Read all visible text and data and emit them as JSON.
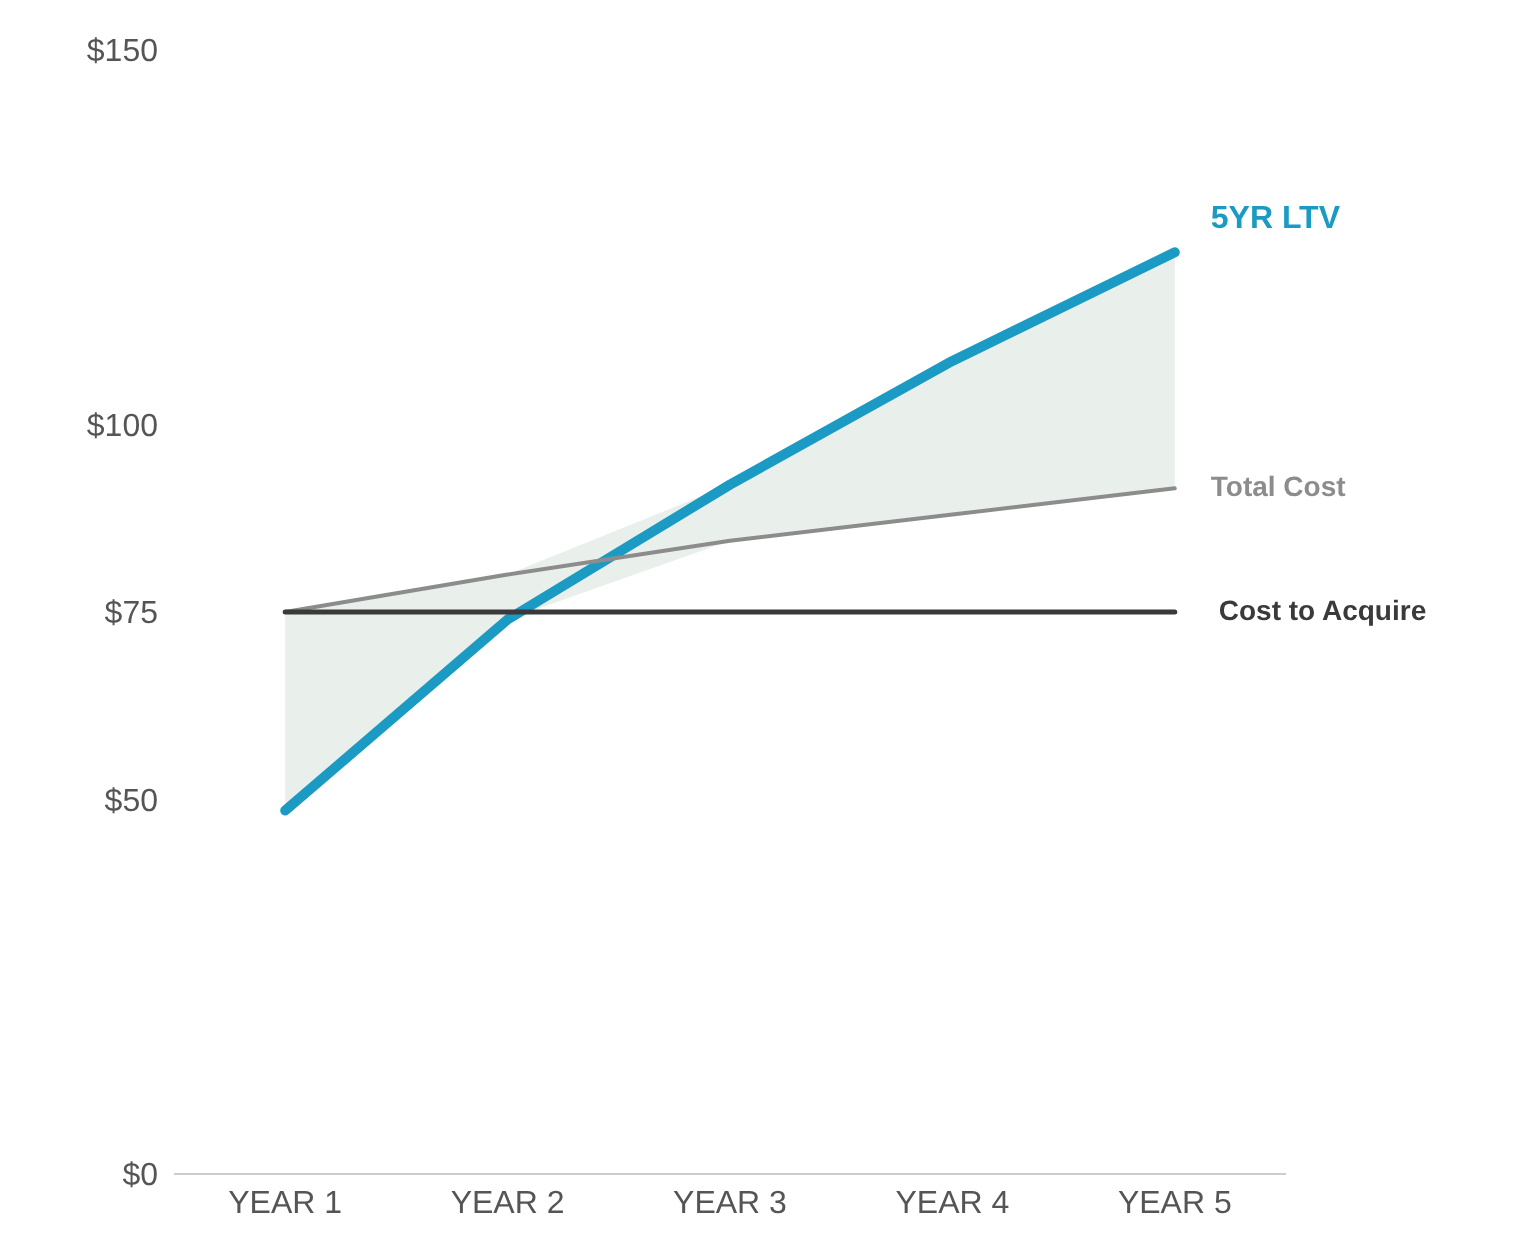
{
  "chart_data": {
    "type": "line",
    "categories": [
      "YEAR 1",
      "YEAR 2",
      "YEAR 3",
      "YEAR 4",
      "YEAR 5"
    ],
    "series": [
      {
        "name": "5YR LTV",
        "color": "#1b9bc4",
        "values": [
          48.5,
          74,
          92,
          108.5,
          123
        ],
        "lower": [
          48.5,
          74,
          84.5,
          88,
          91.5
        ],
        "upper": [
          75,
          80,
          92,
          108.5,
          123
        ]
      },
      {
        "name": "Total Cost",
        "color": "#8c8c8c",
        "values": [
          75,
          80,
          84.5,
          88,
          91.5
        ]
      },
      {
        "name": "Cost to Acquire",
        "color": "#3a3a3a",
        "values": [
          75,
          75,
          75,
          75,
          75
        ]
      }
    ],
    "ylim": [
      0,
      150
    ],
    "yticks": [
      {
        "value": 0,
        "label": "$0"
      },
      {
        "value": 50,
        "label": "$50"
      },
      {
        "value": 75,
        "label": "$75"
      },
      {
        "value": 100,
        "label": "$100"
      },
      {
        "value": 150,
        "label": "$150"
      }
    ],
    "grid": false,
    "legend": false,
    "marker": "none",
    "line_style": "solid"
  }
}
